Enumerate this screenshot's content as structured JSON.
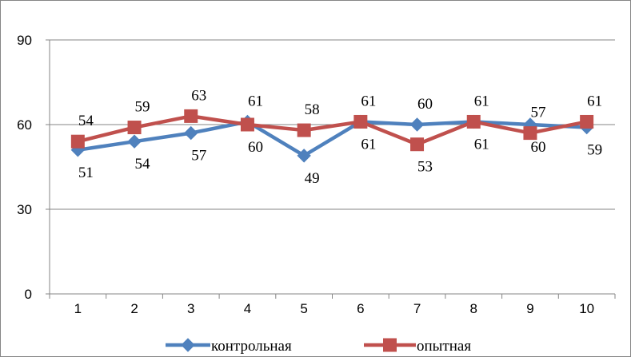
{
  "chart_data": {
    "type": "line",
    "categories": [
      "1",
      "2",
      "3",
      "4",
      "5",
      "6",
      "7",
      "8",
      "9",
      "10"
    ],
    "series": [
      {
        "name": "контрольная",
        "values": [
          51,
          54,
          57,
          61,
          49,
          61,
          60,
          61,
          60,
          59
        ],
        "color": "#4F81BD",
        "marker": "diamond"
      },
      {
        "name": "опытная",
        "values": [
          54,
          59,
          63,
          60,
          58,
          61,
          53,
          61,
          57,
          61
        ],
        "color": "#C0504D",
        "marker": "square"
      }
    ],
    "ylim": [
      0,
      90
    ],
    "yticks": [
      0,
      30,
      60,
      90
    ],
    "grid": true,
    "legend": "bottom",
    "data_labels": true
  }
}
